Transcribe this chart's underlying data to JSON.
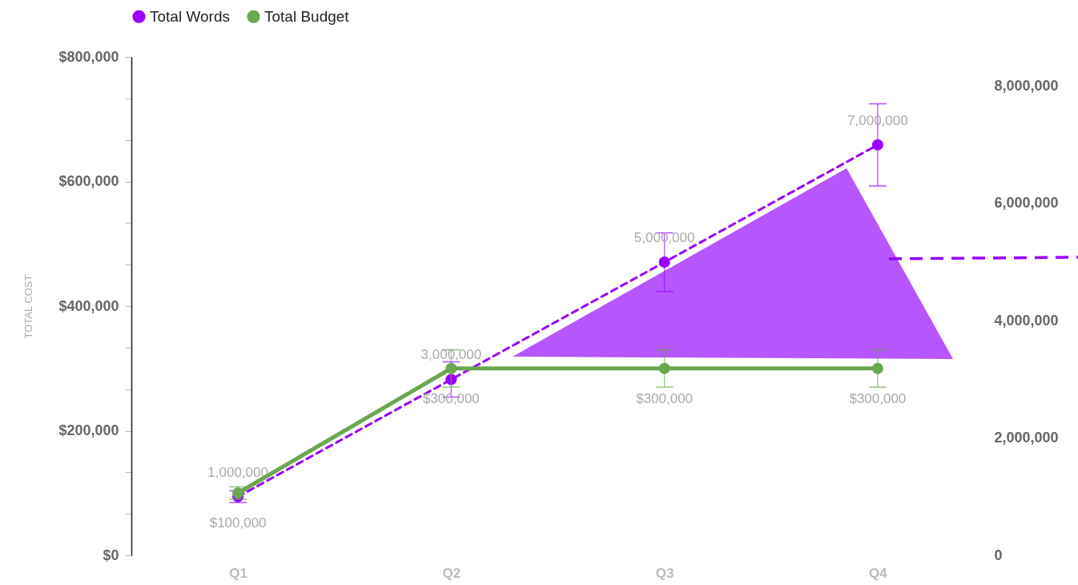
{
  "chart_data": {
    "type": "line",
    "categories": [
      "Q1",
      "Q2",
      "Q3",
      "Q4"
    ],
    "ylabel": "TOTAL COST",
    "ylim": [
      0,
      800000
    ],
    "yticks": [
      {
        "value": 0,
        "label": "$0"
      },
      {
        "value": 66666.67,
        "label": null
      },
      {
        "value": 133333.33,
        "label": null
      },
      {
        "value": 200000,
        "label": "$200,000"
      },
      {
        "value": 266666.67,
        "label": null
      },
      {
        "value": 333333.33,
        "label": null
      },
      {
        "value": 400000,
        "label": "$400,000"
      },
      {
        "value": 466666.67,
        "label": null
      },
      {
        "value": 533333.33,
        "label": null
      },
      {
        "value": 600000,
        "label": "$600,000"
      },
      {
        "value": 666666.67,
        "label": null
      },
      {
        "value": 733333.33,
        "label": null
      },
      {
        "value": 800000,
        "label": "$800,000"
      }
    ],
    "y2lim": [
      0,
      8500000
    ],
    "y2ticks": [
      0,
      {
        "value": 2000000,
        "label": "2,000,000"
      },
      {
        "value": 4000000,
        "label": "4,000,000"
      },
      {
        "value": 6000000,
        "label": "6,000,000"
      },
      {
        "value": 8000000,
        "label": "8,000,000"
      }
    ],
    "legend": "top",
    "marker": "circle",
    "series": [
      {
        "name": "Total Words",
        "color": "#9900ff",
        "axis": "y2",
        "line_style": "dashed",
        "values": [
          1000000,
          3000000,
          5000000,
          7000000
        ],
        "errors": [
          100000,
          300000,
          500000,
          700000
        ],
        "value_labels": [
          "1,000,000",
          "3,000,000",
          "5,000,000",
          "7,000,000"
        ]
      },
      {
        "name": "Total Budget",
        "color": "#6aa84f",
        "line_style": "solid",
        "values": [
          100000,
          300000,
          300000,
          300000
        ],
        "errors": [
          10000,
          30000,
          30000,
          30000
        ],
        "value_labels": [
          "$100,000",
          "$300,000",
          "$300,000",
          "$300,000"
        ]
      }
    ]
  }
}
